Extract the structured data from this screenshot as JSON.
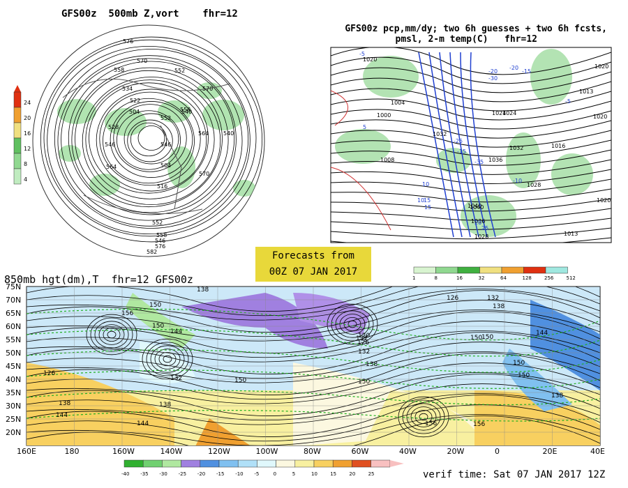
{
  "panel_500mb": {
    "title": "GFS00z  500mb Z,vort    fhr=12",
    "scale_labels": [
      "24",
      "20",
      "16",
      "12",
      "8",
      "4"
    ],
    "scale_colors": [
      "#e03010",
      "#f0a030",
      "#f0e080",
      "#60c060",
      "#90d890",
      "#c0ecc0"
    ],
    "contour_labels": [
      "576",
      "570",
      "558",
      "534",
      "522",
      "504",
      "552",
      "540",
      "528",
      "546",
      "564",
      "552",
      "546",
      "570",
      "564",
      "504",
      "516",
      "558",
      "540",
      "570",
      "552",
      "546",
      "558",
      "576",
      "582"
    ]
  },
  "panel_pcp": {
    "title_line1": "GFS00z pcp,mm/dy; two 6h guesses + two 6h fcsts,",
    "title_line2": "pmsl, 2-m temp(C)   fhr=12",
    "pressure_labels": [
      "1020",
      "1004",
      "1008",
      "1000",
      "1024",
      "1032",
      "1024",
      "1040",
      "1036",
      "1032",
      "1028",
      "1016",
      "1013",
      "1020",
      "1020",
      "1020",
      "1013",
      "1040",
      "1036",
      "1028"
    ],
    "temp_labels": [
      "-5",
      "10",
      "15",
      "-15",
      "-25",
      "-20",
      "-30",
      "-35",
      "-20",
      "-15",
      "-10",
      "-5",
      "5",
      "10",
      "15",
      "20",
      "25"
    ]
  },
  "forecast_box": {
    "line1": "Forecasts from",
    "line2": "00Z 07 JAN 2017"
  },
  "pcp_colorbar": {
    "labels": [
      "1",
      "8",
      "16",
      "32",
      "64",
      "128",
      "256",
      "512"
    ],
    "colors": [
      "#d8f4d0",
      "#90d890",
      "#40b040",
      "#f0e080",
      "#f0a030",
      "#e03010",
      "#a0e8e0"
    ]
  },
  "panel_850mb": {
    "title": "850mb hgt(dm),T  fhr=12 GFS00z",
    "lat_labels": [
      "75N",
      "70N",
      "65N",
      "60N",
      "55N",
      "50N",
      "45N",
      "40N",
      "35N",
      "30N",
      "25N",
      "20N"
    ],
    "lon_labels": [
      "160E",
      "180",
      "160W",
      "140W",
      "120W",
      "100W",
      "80W",
      "60W",
      "40W",
      "20W",
      "0",
      "20E",
      "40E"
    ],
    "height_labels": [
      "138",
      "150",
      "156",
      "150",
      "144",
      "150",
      "126",
      "132",
      "138",
      "144",
      "138",
      "144",
      "156",
      "132",
      "120",
      "126",
      "132",
      "138",
      "150",
      "150",
      "126",
      "132",
      "138",
      "150",
      "144",
      "156",
      "150",
      "138",
      "150"
    ]
  },
  "temp_colorbar": {
    "labels": [
      "-40",
      "-35",
      "-30",
      "-25",
      "-20",
      "-15",
      "-10",
      "-5",
      "0",
      "5",
      "10",
      "15",
      "20",
      "25"
    ],
    "colors": [
      "#30b030",
      "#70d070",
      "#b0e8a0",
      "#a080e0",
      "#5090e0",
      "#80c0f0",
      "#b0e0f8",
      "#e0f8fc",
      "#fcf8e0",
      "#f8f0a0",
      "#f8d060",
      "#f0a030",
      "#e05020",
      "#f8c0c0"
    ]
  },
  "verif": "verif time: Sat 07 JAN 2017 12Z"
}
